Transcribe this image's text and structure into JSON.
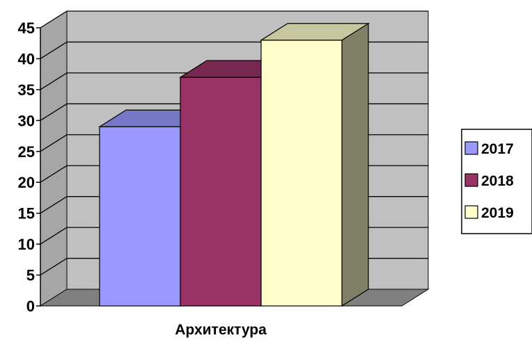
{
  "chart_data": {
    "type": "bar",
    "categories": [
      "Архитектура"
    ],
    "series": [
      {
        "name": "2017",
        "values": [
          29
        ],
        "color": "#9999FF"
      },
      {
        "name": "2018",
        "values": [
          37
        ],
        "color": "#993366"
      },
      {
        "name": "2019",
        "values": [
          43
        ],
        "color": "#FFFFCC"
      }
    ],
    "yticks": [
      "0",
      "5",
      "10",
      "15",
      "20",
      "25",
      "30",
      "35",
      "40",
      "45"
    ],
    "ylim": [
      0,
      45
    ],
    "title": "",
    "xlabel": "",
    "ylabel": "",
    "grid": true,
    "style": "3d",
    "legend_position": "right",
    "colors": {
      "wall": "#C0C0C0",
      "floor": "#808080",
      "side_wall": "#A6A6A6",
      "gridline": "#000000"
    }
  }
}
